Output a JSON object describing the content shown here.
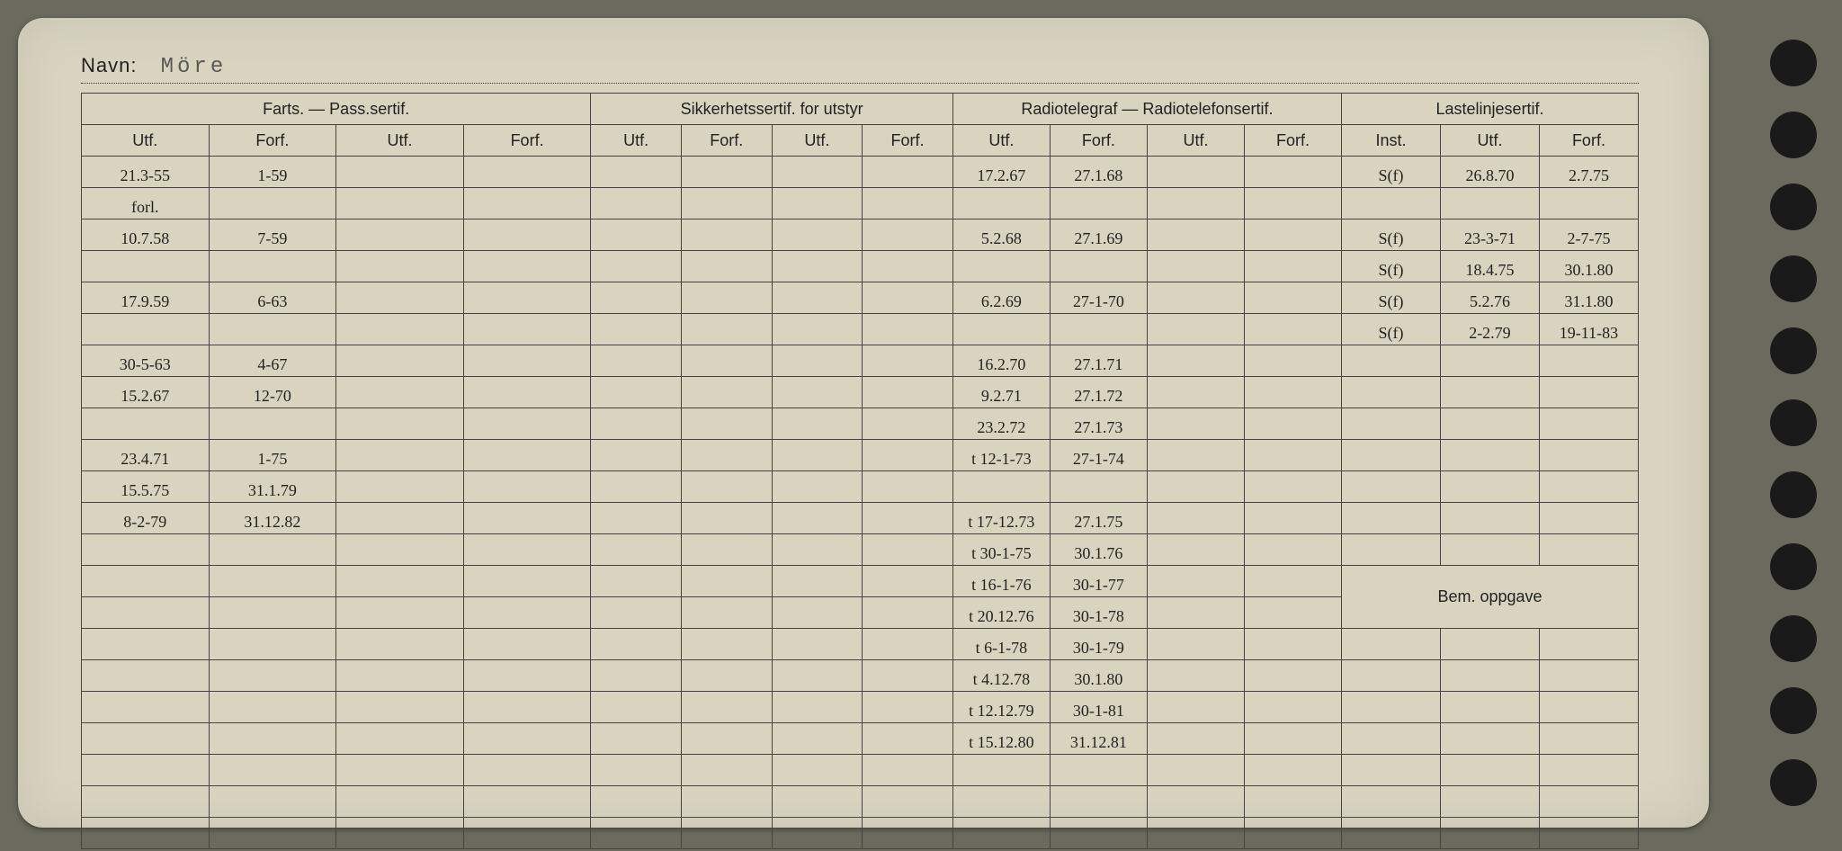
{
  "navn_label": "Navn:",
  "navn_value": "Möre",
  "groups": {
    "farts": "Farts. — Pass.sertif.",
    "sikkerhet": "Sikkerhetssertif. for utstyr",
    "radio": "Radiotelegraf — Radiotelefonsertif.",
    "last": "Lastelinjesertif."
  },
  "subheaders": {
    "utf": "Utf.",
    "forf": "Forf.",
    "inst": "Inst."
  },
  "bem_oppgave": "Bem. oppgave",
  "rows": [
    {
      "f_utf": "21.3-55",
      "f_forf": "1-59",
      "r_utf": "17.2.67",
      "r_forf": "27.1.68",
      "l_inst": "S(f)",
      "l_utf": "26.8.70",
      "l_forf": "2.7.75"
    },
    {
      "f_utf": "forl.",
      "f_forf": "",
      "r_utf": "",
      "r_forf": "",
      "l_inst": "",
      "l_utf": "",
      "l_forf": ""
    },
    {
      "f_utf": "10.7.58",
      "f_forf": "7-59",
      "r_utf": "5.2.68",
      "r_forf": "27.1.69",
      "l_inst": "S(f)",
      "l_utf": "23-3-71",
      "l_forf": "2-7-75"
    },
    {
      "f_utf": "",
      "f_forf": "",
      "r_utf": "",
      "r_forf": "",
      "l_inst": "S(f)",
      "l_utf": "18.4.75",
      "l_forf": "30.1.80"
    },
    {
      "f_utf": "17.9.59",
      "f_forf": "6-63",
      "r_utf": "6.2.69",
      "r_forf": "27-1-70",
      "l_inst": "S(f)",
      "l_utf": "5.2.76",
      "l_forf": "31.1.80"
    },
    {
      "f_utf": "",
      "f_forf": "",
      "r_utf": "",
      "r_forf": "",
      "l_inst": "S(f)",
      "l_utf": "2-2.79",
      "l_forf": "19-11-83"
    },
    {
      "f_utf": "30-5-63",
      "f_forf": "4-67",
      "r_utf": "16.2.70",
      "r_forf": "27.1.71",
      "l_inst": "",
      "l_utf": "",
      "l_forf": ""
    },
    {
      "f_utf": "15.2.67",
      "f_forf": "12-70",
      "r_utf": "9.2.71",
      "r_forf": "27.1.72",
      "l_inst": "",
      "l_utf": "",
      "l_forf": ""
    },
    {
      "f_utf": "",
      "f_forf": "",
      "r_utf": "23.2.72",
      "r_forf": "27.1.73",
      "l_inst": "",
      "l_utf": "",
      "l_forf": ""
    },
    {
      "f_utf": "23.4.71",
      "f_forf": "1-75",
      "r_utf": "t 12-1-73",
      "r_forf": "27-1-74",
      "l_inst": "",
      "l_utf": "",
      "l_forf": ""
    },
    {
      "f_utf": "15.5.75",
      "f_forf": "31.1.79",
      "r_utf": "",
      "r_forf": "",
      "l_inst": "",
      "l_utf": "",
      "l_forf": ""
    },
    {
      "f_utf": "8-2-79",
      "f_forf": "31.12.82",
      "r_utf": "t 17-12.73",
      "r_forf": "27.1.75",
      "l_inst": "",
      "l_utf": "",
      "l_forf": ""
    },
    {
      "f_utf": "",
      "f_forf": "",
      "r_utf": "t 30-1-75",
      "r_forf": "30.1.76",
      "l_inst": "",
      "l_utf": "",
      "l_forf": ""
    },
    {
      "f_utf": "",
      "f_forf": "",
      "r_utf": "t 16-1-76",
      "r_forf": "30-1-77",
      "l_inst": "",
      "l_utf": "",
      "l_forf": "",
      "bem_row": true
    },
    {
      "f_utf": "",
      "f_forf": "",
      "r_utf": "t 20.12.76",
      "r_forf": "30-1-78",
      "l_inst": "",
      "l_utf": "",
      "l_forf": ""
    },
    {
      "f_utf": "",
      "f_forf": "",
      "r_utf": "t 6-1-78",
      "r_forf": "30-1-79",
      "l_inst": "",
      "l_utf": "",
      "l_forf": ""
    },
    {
      "f_utf": "",
      "f_forf": "",
      "r_utf": "t 4.12.78",
      "r_forf": "30.1.80",
      "l_inst": "",
      "l_utf": "",
      "l_forf": ""
    },
    {
      "f_utf": "",
      "f_forf": "",
      "r_utf": "t 12.12.79",
      "r_forf": "30-1-81",
      "l_inst": "",
      "l_utf": "",
      "l_forf": ""
    },
    {
      "f_utf": "",
      "f_forf": "",
      "r_utf": "t 15.12.80",
      "r_forf": "31.12.81",
      "l_inst": "",
      "l_utf": "",
      "l_forf": ""
    },
    {
      "f_utf": "",
      "f_forf": "",
      "r_utf": "",
      "r_forf": "",
      "l_inst": "",
      "l_utf": "",
      "l_forf": ""
    },
    {
      "f_utf": "",
      "f_forf": "",
      "r_utf": "",
      "r_forf": "",
      "l_inst": "",
      "l_utf": "",
      "l_forf": ""
    },
    {
      "f_utf": "",
      "f_forf": "",
      "r_utf": "",
      "r_forf": "",
      "l_inst": "",
      "l_utf": "",
      "l_forf": ""
    }
  ],
  "colors": {
    "paper": "#d8d4c0",
    "ink_printed": "#222222",
    "ink_handwritten": "#2a3a6a",
    "background": "#6a6a5e",
    "hole": "#1a1a1a"
  }
}
